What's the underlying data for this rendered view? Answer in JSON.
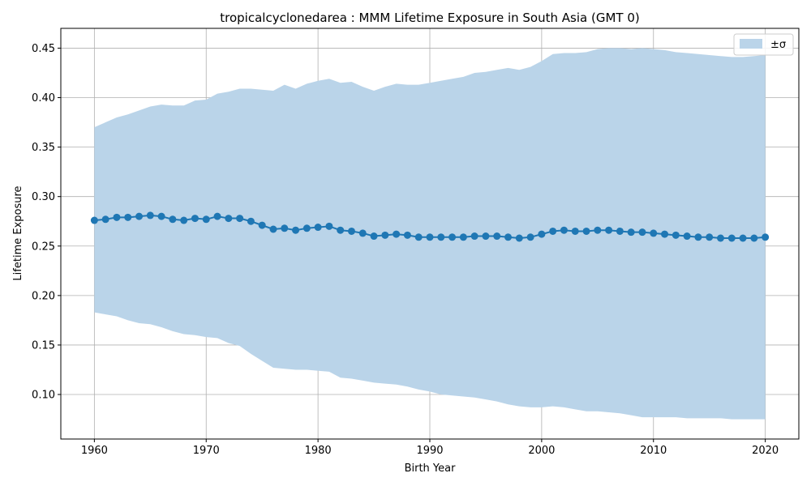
{
  "chart_data": {
    "type": "line",
    "title": "tropicalcyclonedarea : MMM Lifetime Exposure in South Asia (GMT 0)",
    "xlabel": "Birth Year",
    "ylabel": "Lifetime Exposure",
    "xlim": [
      1957,
      2023
    ],
    "ylim": [
      0.055,
      0.47
    ],
    "xticks": [
      1960,
      1970,
      1980,
      1990,
      2000,
      2010,
      2020
    ],
    "yticks": [
      0.1,
      0.15,
      0.2,
      0.25,
      0.3,
      0.35,
      0.4,
      0.45
    ],
    "ytick_labels": [
      "0.10",
      "0.15",
      "0.20",
      "0.25",
      "0.30",
      "0.35",
      "0.40",
      "0.45"
    ],
    "grid": true,
    "legend": {
      "placement": "top-right",
      "entries": [
        "±σ"
      ]
    },
    "colors": {
      "line": "#1f77b4",
      "band": "#bad4e9"
    },
    "x": [
      1960,
      1961,
      1962,
      1963,
      1964,
      1965,
      1966,
      1967,
      1968,
      1969,
      1970,
      1971,
      1972,
      1973,
      1974,
      1975,
      1976,
      1977,
      1978,
      1979,
      1980,
      1981,
      1982,
      1983,
      1984,
      1985,
      1986,
      1987,
      1988,
      1989,
      1990,
      1991,
      1992,
      1993,
      1994,
      1995,
      1996,
      1997,
      1998,
      1999,
      2000,
      2001,
      2002,
      2003,
      2004,
      2005,
      2006,
      2007,
      2008,
      2009,
      2010,
      2011,
      2012,
      2013,
      2014,
      2015,
      2016,
      2017,
      2018,
      2019,
      2020
    ],
    "series": [
      {
        "kind": "mean",
        "values": [
          0.276,
          0.277,
          0.279,
          0.279,
          0.28,
          0.281,
          0.28,
          0.277,
          0.276,
          0.278,
          0.277,
          0.28,
          0.278,
          0.278,
          0.275,
          0.271,
          0.267,
          0.268,
          0.266,
          0.268,
          0.269,
          0.27,
          0.266,
          0.265,
          0.263,
          0.26,
          0.261,
          0.262,
          0.261,
          0.259,
          0.259,
          0.259,
          0.259,
          0.259,
          0.26,
          0.26,
          0.26,
          0.259,
          0.258,
          0.259,
          0.262,
          0.265,
          0.266,
          0.265,
          0.265,
          0.266,
          0.266,
          0.265,
          0.264,
          0.264,
          0.263,
          0.262,
          0.261,
          0.26,
          0.259,
          0.259,
          0.258,
          0.258,
          0.258,
          0.258,
          0.259
        ]
      },
      {
        "name": "±σ",
        "kind": "band",
        "upper": [
          0.37,
          0.375,
          0.38,
          0.383,
          0.387,
          0.391,
          0.393,
          0.392,
          0.392,
          0.397,
          0.398,
          0.404,
          0.406,
          0.409,
          0.409,
          0.408,
          0.407,
          0.413,
          0.409,
          0.414,
          0.417,
          0.419,
          0.415,
          0.416,
          0.411,
          0.407,
          0.411,
          0.414,
          0.413,
          0.413,
          0.415,
          0.417,
          0.419,
          0.421,
          0.425,
          0.426,
          0.428,
          0.43,
          0.428,
          0.431,
          0.437,
          0.444,
          0.445,
          0.445,
          0.446,
          0.449,
          0.45,
          0.45,
          0.449,
          0.45,
          0.449,
          0.448,
          0.446,
          0.445,
          0.444,
          0.443,
          0.442,
          0.441,
          0.441,
          0.442,
          0.443
        ],
        "lower": [
          0.183,
          0.181,
          0.179,
          0.175,
          0.172,
          0.171,
          0.168,
          0.164,
          0.161,
          0.16,
          0.158,
          0.157,
          0.152,
          0.149,
          0.141,
          0.134,
          0.127,
          0.126,
          0.125,
          0.125,
          0.124,
          0.123,
          0.117,
          0.116,
          0.114,
          0.112,
          0.111,
          0.11,
          0.108,
          0.105,
          0.103,
          0.1,
          0.099,
          0.098,
          0.097,
          0.095,
          0.093,
          0.09,
          0.088,
          0.087,
          0.087,
          0.088,
          0.087,
          0.085,
          0.083,
          0.083,
          0.082,
          0.081,
          0.079,
          0.077,
          0.077,
          0.077,
          0.077,
          0.076,
          0.076,
          0.076,
          0.076,
          0.075,
          0.075,
          0.075,
          0.075
        ]
      }
    ]
  }
}
